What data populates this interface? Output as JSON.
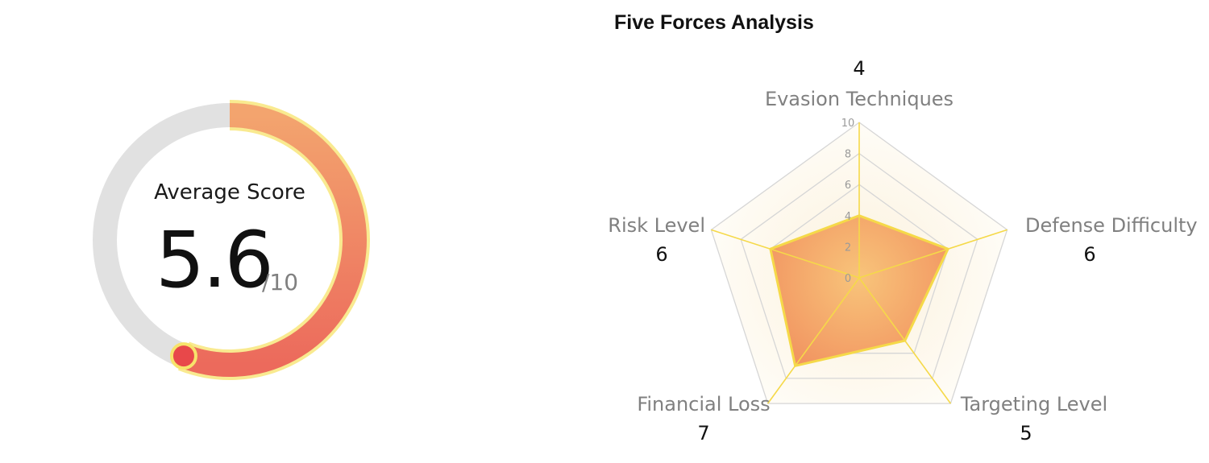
{
  "gauge": {
    "label": "Average Score",
    "value": "5.6",
    "max_label": "/10",
    "fraction": 0.56,
    "colors": {
      "track": "#e1e1e1",
      "fill_start": "#f3a46e",
      "fill_end": "#ec6a5c",
      "glow": "#f7e36b",
      "knob": "#e8484a"
    }
  },
  "chart_data": {
    "type": "radar",
    "title": "Five Forces Analysis",
    "axes": [
      "Evasion Techniques",
      "Defense Difficulty",
      "Targeting Level",
      "Financial Loss",
      "Risk Level"
    ],
    "values": [
      4,
      6,
      5,
      7,
      6
    ],
    "value_labels": [
      "4",
      "6",
      "5",
      "7",
      "6"
    ],
    "r_ticks": [
      "0",
      "2",
      "4",
      "6",
      "8",
      "10"
    ],
    "rlim": [
      0,
      10
    ],
    "grid": true,
    "legend": "none",
    "colors": {
      "fill_center": "#f8c47a",
      "fill_edge": "#ee7a53",
      "outline": "#f5d949",
      "spokes": "#f5d949",
      "grid": "#d6d6d6",
      "axis_label": "#808080"
    }
  }
}
